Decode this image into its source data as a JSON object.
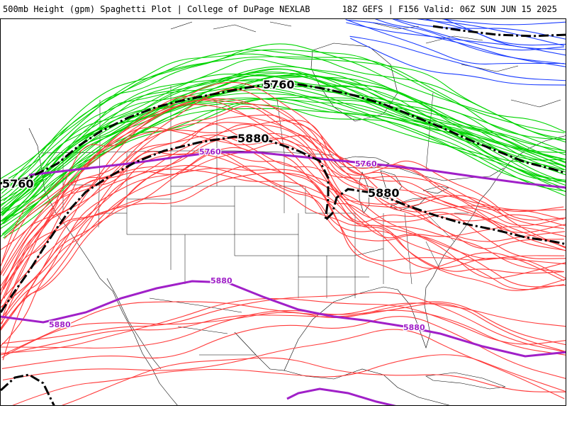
{
  "header": {
    "left_title": "500mb Height (gpm) Spaghetti Plot | College of DuPage NEXLAB",
    "right_title": "18Z GEFS | F156 Valid: 06Z SUN JUN 15 2025"
  },
  "colors": {
    "contour_5760_members": "#00d400",
    "contour_5880_members": "#ff3b3b",
    "contour_5940_members": "#1a3cff",
    "climatology": "#a020c8",
    "ensemble_mean": "#000000",
    "geography": "#000000"
  },
  "labels": {
    "mean_5760_a": "5760",
    "mean_5760_b": "5760",
    "mean_5880_a": "5880",
    "mean_5880_b": "5880",
    "clim_5760_a": "5760",
    "clim_5760_b": "5760",
    "clim_5880_a": "5880",
    "clim_5880_b": "5880",
    "clim_5880_c": "5880"
  }
}
